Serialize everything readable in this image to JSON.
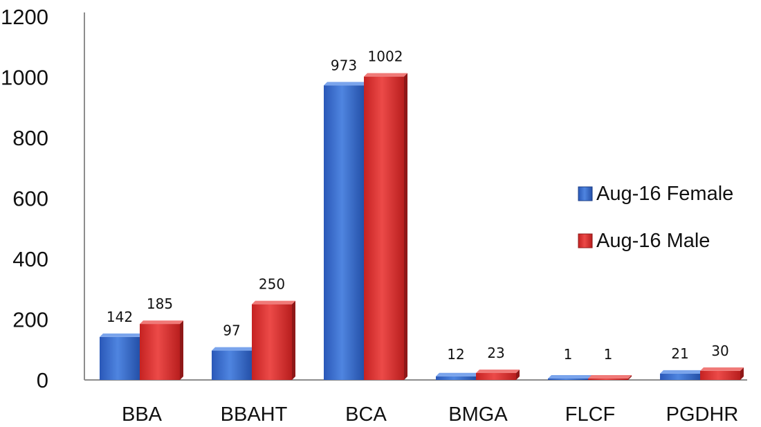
{
  "chart_data": {
    "type": "bar",
    "title": "",
    "xlabel": "",
    "ylabel": "",
    "ylim": [
      0,
      1200
    ],
    "yticks": [
      0,
      200,
      400,
      600,
      800,
      1000,
      1200
    ],
    "grid": false,
    "legend_position": "right",
    "categories": [
      "BBA",
      "BBAHT",
      "BCA",
      "BMGA",
      "FLCF",
      "PGDHR"
    ],
    "series": [
      {
        "name": "Aug-16 Female",
        "color": "#3366cc",
        "values": [
          142,
          97,
          973,
          12,
          1,
          21
        ]
      },
      {
        "name": "Aug-16 Male",
        "color": "#dd3333",
        "values": [
          185,
          250,
          1002,
          23,
          1,
          30
        ]
      }
    ]
  }
}
